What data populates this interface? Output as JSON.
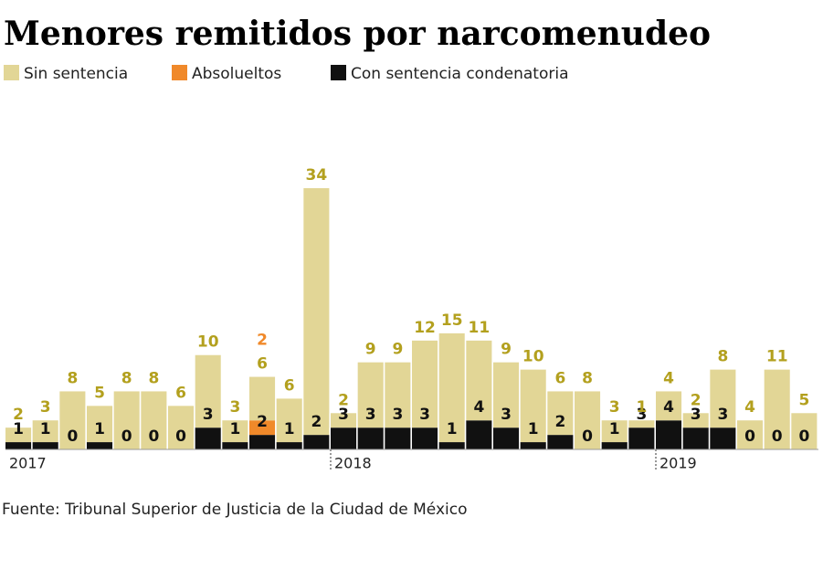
{
  "chart_data": {
    "type": "stacked-bar",
    "title": "Menores remitidos por narcomenudeo",
    "source": "Fuente: Tribunal Superior de Justicia de la Ciudad de México",
    "categories": [
      "2017",
      null,
      null,
      null,
      null,
      null,
      null,
      null,
      null,
      null,
      null,
      null,
      "2018",
      null,
      null,
      null,
      null,
      null,
      null,
      null,
      null,
      null,
      null,
      null,
      "2019",
      null,
      null,
      null,
      null,
      null
    ],
    "series": [
      {
        "name": "Con sentencia condenatoria",
        "color": "#111111",
        "label_color": "#111111",
        "values": [
          1,
          1,
          0,
          1,
          0,
          0,
          0,
          3,
          1,
          2,
          1,
          2,
          3,
          3,
          3,
          3,
          1,
          4,
          3,
          1,
          2,
          0,
          1,
          3,
          4,
          3,
          3,
          0,
          0,
          0
        ]
      },
      {
        "name": "Absolueltos",
        "color": "#f0892a",
        "label_color": "#f0892a",
        "values": [
          0,
          0,
          0,
          0,
          0,
          0,
          0,
          0,
          0,
          2,
          0,
          0,
          0,
          0,
          0,
          0,
          0,
          0,
          0,
          0,
          0,
          0,
          0,
          0,
          0,
          0,
          0,
          0,
          0,
          0
        ]
      },
      {
        "name": "Sin sentencia",
        "color": "#e2d696",
        "label_color": "#b3a01e",
        "values": [
          2,
          3,
          8,
          5,
          8,
          8,
          6,
          10,
          3,
          6,
          6,
          34,
          2,
          9,
          9,
          12,
          15,
          11,
          9,
          10,
          6,
          8,
          3,
          1,
          4,
          2,
          8,
          4,
          11,
          5
        ]
      }
    ],
    "ylim": [
      0,
      36
    ]
  }
}
